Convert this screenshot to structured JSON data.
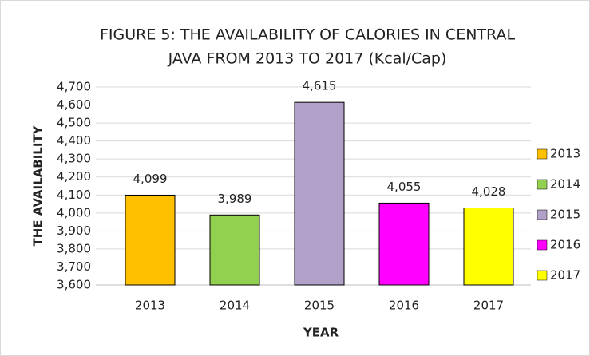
{
  "chart_data": {
    "type": "bar",
    "title": "FIGURE 5: THE AVAILABILITY OF CALORIES IN CENTRAL",
    "subtitle": "JAVA FROM 2013 TO 2017 (Kcal/Cap)",
    "x_label": "YEAR",
    "y_label": "THE AVAILABILITY",
    "categories": [
      "2013",
      "2014",
      "2015",
      "2016",
      "2017"
    ],
    "values": [
      4099,
      3989,
      4615,
      4055,
      4028
    ],
    "value_labels": [
      "4,099",
      "3,989",
      "4,615",
      "4,055",
      "4,028"
    ],
    "colors": [
      "#ffc000",
      "#92d050",
      "#b1a0c7",
      "#ff00ff",
      "#ffff00"
    ],
    "ylim": [
      3600,
      4700
    ],
    "yticks": [
      {
        "value": 3600,
        "label": "3,600"
      },
      {
        "value": 3700,
        "label": "3,700"
      },
      {
        "value": 3800,
        "label": "3,800"
      },
      {
        "value": 3900,
        "label": "3,900"
      },
      {
        "value": 4000,
        "label": "4,000"
      },
      {
        "value": 4100,
        "label": "4,100"
      },
      {
        "value": 4200,
        "label": "4,200"
      },
      {
        "value": 4300,
        "label": "4,300"
      },
      {
        "value": 4400,
        "label": "4,400"
      },
      {
        "value": 4500,
        "label": "4,500"
      },
      {
        "value": 4600,
        "label": "4,600"
      },
      {
        "value": 4700,
        "label": "4,700"
      }
    ],
    "grid": true,
    "legend": "right"
  }
}
